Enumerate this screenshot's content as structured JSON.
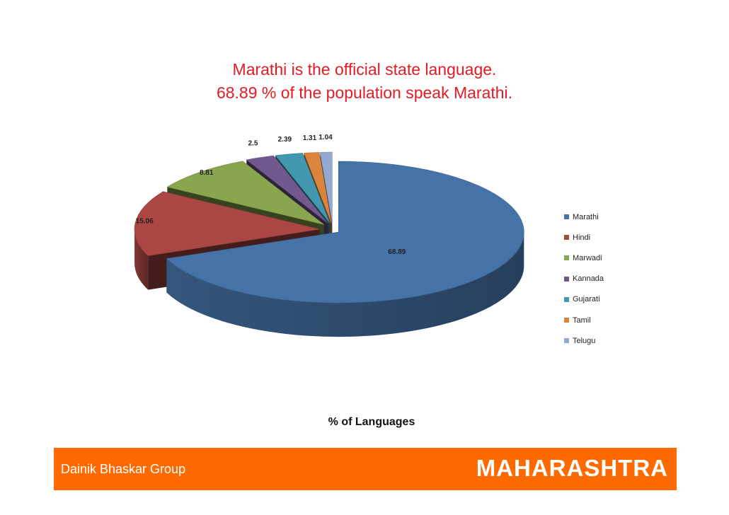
{
  "title": {
    "line1": "Marathi is the official state language.",
    "line2": "68.89 % of the population speak Marathi."
  },
  "chart_data": {
    "type": "pie",
    "categories": [
      "Marathi",
      "Hindi",
      "Marwadi",
      "Kannada",
      "Gujarati",
      "Tamil",
      "Telugu"
    ],
    "values": [
      68.89,
      15.06,
      8.81,
      2.5,
      2.39,
      1.31,
      1.04
    ],
    "colors": [
      "#4572a7",
      "#aa4643",
      "#89a54e",
      "#71588f",
      "#4198af",
      "#db843d",
      "#93a9cf"
    ],
    "value_labels": [
      "68.89",
      "15.06",
      "8.81",
      "2.5",
      "2.39",
      "1.31",
      "1.04"
    ],
    "legend_position": "right",
    "exploded": true,
    "style": "3d",
    "xlabel": "% of Languages"
  },
  "legend": {
    "items": [
      "Marathi",
      "Hindi",
      "Marwadi",
      "Kannada",
      "Gujarati",
      "Tamil",
      "Telugu"
    ]
  },
  "footer": {
    "left_text": "Dainik Bhaskar Group",
    "right_text": "MAHARASHTRA",
    "background": "#ff6a00"
  }
}
